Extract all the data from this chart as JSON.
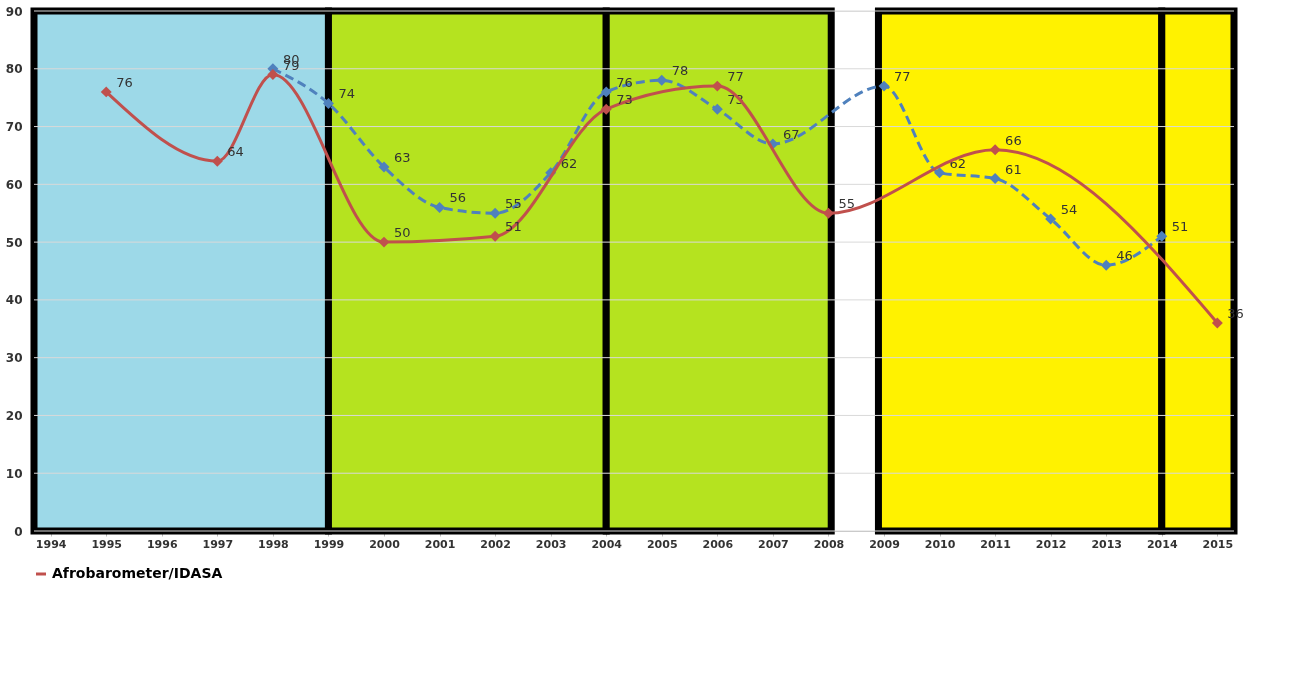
{
  "chart_data": {
    "type": "line",
    "xlim": [
      1993.7,
      2015.3
    ],
    "xticks": [
      1994,
      1995,
      1996,
      1997,
      1998,
      1999,
      2000,
      2001,
      2002,
      2003,
      2004,
      2005,
      2006,
      2007,
      2008,
      2009,
      2010,
      2011,
      2012,
      2013,
      2014,
      2015
    ],
    "ylim": [
      0,
      90
    ],
    "yticks": [
      0,
      10,
      20,
      30,
      40,
      50,
      60,
      70,
      80,
      90
    ],
    "grid": "y",
    "legend": "bottom",
    "data_labels": true,
    "marker": "diamond",
    "bands": [
      {
        "axis": "x",
        "from": 1993.7,
        "to": 1999,
        "color": "#9dd9e8"
      },
      {
        "axis": "x",
        "from": 1999,
        "to": 2004,
        "color": "#b5e31f"
      },
      {
        "axis": "x",
        "from": 2004,
        "to": 2008.05,
        "color": "#b5e31f"
      },
      {
        "axis": "x",
        "from": 2008.9,
        "to": 2014,
        "color": "#fff200"
      },
      {
        "axis": "x",
        "from": 2014,
        "to": 2015.3,
        "color": "#fff200"
      }
    ],
    "series": [
      {
        "color": "#4f81bd",
        "line_style": "dashed",
        "x": [
          1998,
          1999,
          2000,
          2001,
          2002,
          2003,
          2004,
          2005,
          2006,
          2007,
          2009,
          2010,
          2011,
          2012,
          2013,
          2014
        ],
        "values": [
          80,
          74,
          63,
          56,
          55,
          62,
          76,
          78,
          73,
          67,
          77,
          62,
          61,
          54,
          46,
          51
        ]
      },
      {
        "name": "Afrobarometer/IDASA",
        "color": "#c0504d",
        "line_style": "solid",
        "x": [
          1995,
          1997,
          1998,
          2000,
          2002,
          2004,
          2006,
          2008,
          2011,
          2015
        ],
        "values": [
          76,
          64,
          79,
          50,
          51,
          73,
          77,
          55,
          66,
          36
        ]
      }
    ]
  }
}
